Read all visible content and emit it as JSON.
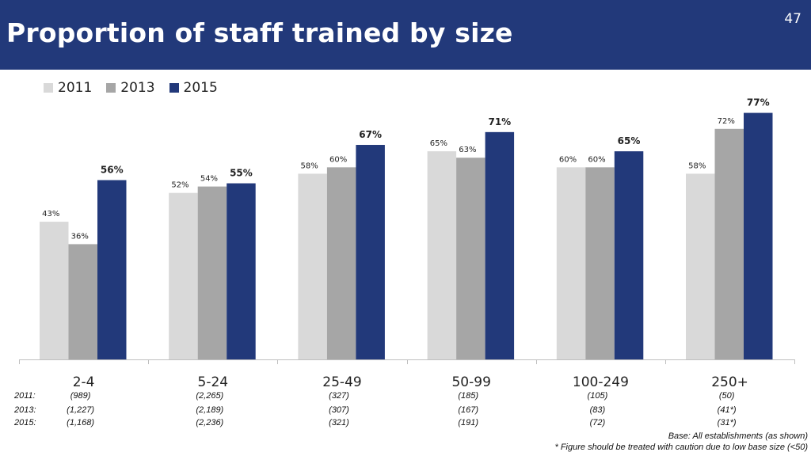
{
  "slide": {
    "title": "Proportion of staff trained by size",
    "page_number": "47"
  },
  "colors": {
    "header_bg": "#22397a",
    "2011": "#d9d9d9",
    "2013": "#a6a6a6",
    "2015": "#22397a"
  },
  "chart_data": {
    "type": "bar",
    "categories": [
      "2-4",
      "5-24",
      "25-49",
      "50-99",
      "100-249",
      "250+"
    ],
    "series": [
      {
        "name": "2011",
        "values": [
          43,
          52,
          58,
          65,
          60,
          58
        ],
        "labels": [
          "43%",
          "52%",
          "58%",
          "65%",
          "60%",
          "58%"
        ]
      },
      {
        "name": "2013",
        "values": [
          36,
          54,
          60,
          63,
          60,
          72
        ],
        "labels": [
          "36%",
          "54%",
          "60%",
          "63%",
          "60%",
          "72%"
        ]
      },
      {
        "name": "2015",
        "values": [
          56,
          55,
          67,
          71,
          65,
          77
        ],
        "labels": [
          "56%",
          "55%",
          "67%",
          "71%",
          "65%",
          "77%"
        ]
      }
    ],
    "ylim": [
      0,
      90
    ],
    "legend_position": "top-left",
    "grid": false
  },
  "base_table": {
    "rows": [
      {
        "label": "2011:",
        "values": [
          "(989)",
          "(2,265)",
          "(327)",
          "(185)",
          "(105)",
          "(50)"
        ]
      },
      {
        "label": "2013:",
        "values": [
          "(1,227)",
          "(2,189)",
          "(307)",
          "(167)",
          "(83)",
          "(41*)"
        ]
      },
      {
        "label": "2015:",
        "values": [
          "(1,168)",
          "(2,236)",
          "(321)",
          "(191)",
          "(72)",
          "(31*)"
        ]
      }
    ]
  },
  "notes": {
    "base": "Base: All establishments  (as shown)",
    "caution": "* Figure should be treated with caution due to low base size (<50)"
  }
}
